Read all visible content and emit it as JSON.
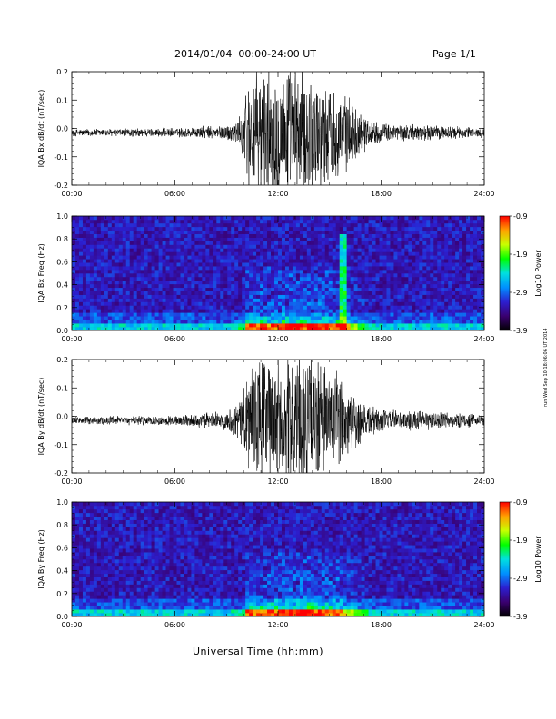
{
  "header": {
    "date_range": "2014/01/04  00:00-24:00 UT",
    "page": "Page 1/1"
  },
  "x_axis_title": "Universal Time (hh:mm)",
  "run_stamp": "run Wed Sep 10 18:06:06 UT 2014",
  "colors": {
    "trace": "#000000",
    "spectrogram_background": "#1a0a3a",
    "colorbar": [
      "#000000",
      "#3a0070",
      "#2c1fd0",
      "#0090ff",
      "#00e0e0",
      "#00ff00",
      "#c8ff00",
      "#ffa000",
      "#ff0000"
    ]
  },
  "chart_data": [
    {
      "type": "line",
      "ylabel": "IQA Bx dB/dt (nT/sec)",
      "xlim": [
        0,
        24
      ],
      "ylim": [
        -0.2,
        0.2
      ],
      "x_ticks": [
        "00:00",
        "06:00",
        "12:00",
        "18:00",
        "24:00"
      ],
      "y_ticks": [
        "-0.2",
        "-0.1",
        "0.0",
        "0.1",
        "0.2"
      ],
      "amplitude_envelope": {
        "hours": [
          0,
          6,
          9,
          9.8,
          10.3,
          11,
          12,
          13,
          14,
          15,
          16,
          17,
          17.5,
          18,
          21,
          24
        ],
        "amplitude": [
          0.012,
          0.015,
          0.025,
          0.05,
          0.2,
          0.22,
          0.22,
          0.22,
          0.2,
          0.16,
          0.12,
          0.06,
          0.04,
          0.03,
          0.025,
          0.015
        ]
      }
    },
    {
      "type": "heatmap",
      "ylabel": "IQA Bx Freq (Hz)",
      "xlim": [
        0,
        24
      ],
      "ylim": [
        0,
        1.0
      ],
      "x_ticks": [
        "00:00",
        "06:00",
        "12:00",
        "18:00",
        "24:00"
      ],
      "y_ticks": [
        "0.0",
        "0.2",
        "0.4",
        "0.6",
        "0.8",
        "1.0"
      ],
      "colorbar": {
        "label": "Log10 Power",
        "range": [
          -3.9,
          -0.9
        ],
        "ticks": [
          "-0.9",
          "-1.9",
          "-2.9",
          "-3.9"
        ]
      }
    },
    {
      "type": "line",
      "ylabel": "IQA By dB/dt (nT/sec)",
      "xlim": [
        0,
        24
      ],
      "ylim": [
        -0.2,
        0.2
      ],
      "x_ticks": [
        "00:00",
        "06:00",
        "12:00",
        "18:00",
        "24:00"
      ],
      "y_ticks": [
        "-0.2",
        "-0.1",
        "0.0",
        "0.1",
        "0.2"
      ],
      "amplitude_envelope": {
        "hours": [
          0,
          6,
          9,
          9.8,
          10.3,
          11,
          12,
          13,
          14,
          15,
          16,
          17,
          17.5,
          18,
          21,
          24
        ],
        "amplitude": [
          0.012,
          0.016,
          0.03,
          0.07,
          0.2,
          0.22,
          0.22,
          0.22,
          0.21,
          0.18,
          0.13,
          0.07,
          0.05,
          0.035,
          0.03,
          0.018
        ]
      }
    },
    {
      "type": "heatmap",
      "ylabel": "IQA By Freq (Hz)",
      "xlim": [
        0,
        24
      ],
      "ylim": [
        0,
        1.0
      ],
      "x_ticks": [
        "00:00",
        "06:00",
        "12:00",
        "18:00",
        "24:00"
      ],
      "y_ticks": [
        "0.0",
        "0.2",
        "0.4",
        "0.6",
        "0.8",
        "1.0"
      ],
      "colorbar": {
        "label": "Log10 Power",
        "range": [
          -3.9,
          -0.9
        ],
        "ticks": [
          "-0.9",
          "-1.9",
          "-2.9",
          "-3.9"
        ]
      }
    }
  ]
}
